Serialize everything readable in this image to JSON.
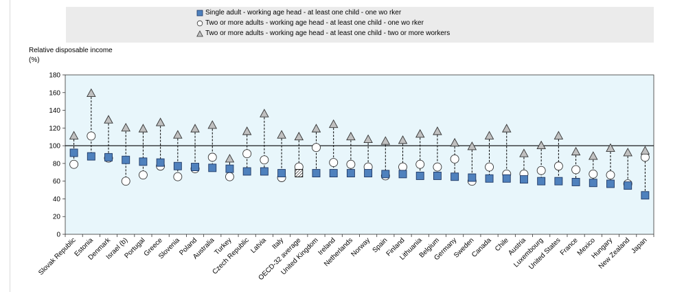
{
  "chart_data": {
    "type": "scatter",
    "title": "",
    "xlabel": "",
    "ylabel": "Relative disposable income",
    "ylabel_unit": "(%)",
    "ylim": [
      0,
      180
    ],
    "yticks": [
      "0",
      "20",
      "40",
      "60",
      "80",
      "100",
      "120",
      "140",
      "160",
      "180"
    ],
    "reference_line": 100,
    "legend_placement": "top",
    "plot_background": "#e8f6fb",
    "categories": [
      "Slovak Republic",
      "Estonia",
      "Denmark",
      "Israel (b)",
      "Portugal",
      "Greece",
      "Slovenia",
      "Poland",
      "Australia",
      "Turkey",
      "Czech Republic",
      "Latvia",
      "Italy",
      "OECD-32 average",
      "United Kingdom",
      "Ireland",
      "Netherlands",
      "Norway",
      "Spain",
      "Finland",
      "Lithuania",
      "Belgium",
      "Germany",
      "Sweden",
      "Canada",
      "Chile",
      "Austria",
      "Luxembourg",
      "United States",
      "France",
      "Mexico",
      "Hungary",
      "New Zealand",
      "Japan"
    ],
    "highlight_category": "OECD-32 average",
    "series": [
      {
        "name": "Single adult - working age head - at least one child - one wo rker",
        "marker": "square",
        "color": "#4f81bd",
        "values": [
          92,
          88,
          87,
          84,
          82,
          81,
          77,
          76,
          75,
          74,
          71,
          71,
          69,
          69,
          69,
          69,
          69,
          69,
          68,
          68,
          66,
          66,
          65,
          64,
          63,
          63,
          62,
          60,
          60,
          59,
          58,
          57,
          55,
          44
        ]
      },
      {
        "name": "Two or more adults - working age head - at least one child - one wo rker",
        "marker": "circle",
        "color": "#ffffff",
        "values": [
          79,
          111,
          86,
          60,
          67,
          77,
          65,
          74,
          87,
          65,
          91,
          84,
          64,
          76,
          98,
          81,
          79,
          76,
          66,
          76,
          79,
          76,
          85,
          60,
          76,
          68,
          68,
          72,
          77,
          73,
          68,
          67,
          57,
          87
        ]
      },
      {
        "name": "Two or more adults - working age head - at least one child - two or more workers",
        "marker": "triangle",
        "color": "#c0c0c0",
        "values": [
          111,
          159,
          129,
          120,
          119,
          126,
          112,
          119,
          123,
          85,
          116,
          136,
          112,
          110,
          119,
          124,
          110,
          107,
          105,
          106,
          113,
          116,
          103,
          99,
          111,
          119,
          91,
          100,
          111,
          93,
          88,
          97,
          92,
          94
        ]
      }
    ]
  }
}
